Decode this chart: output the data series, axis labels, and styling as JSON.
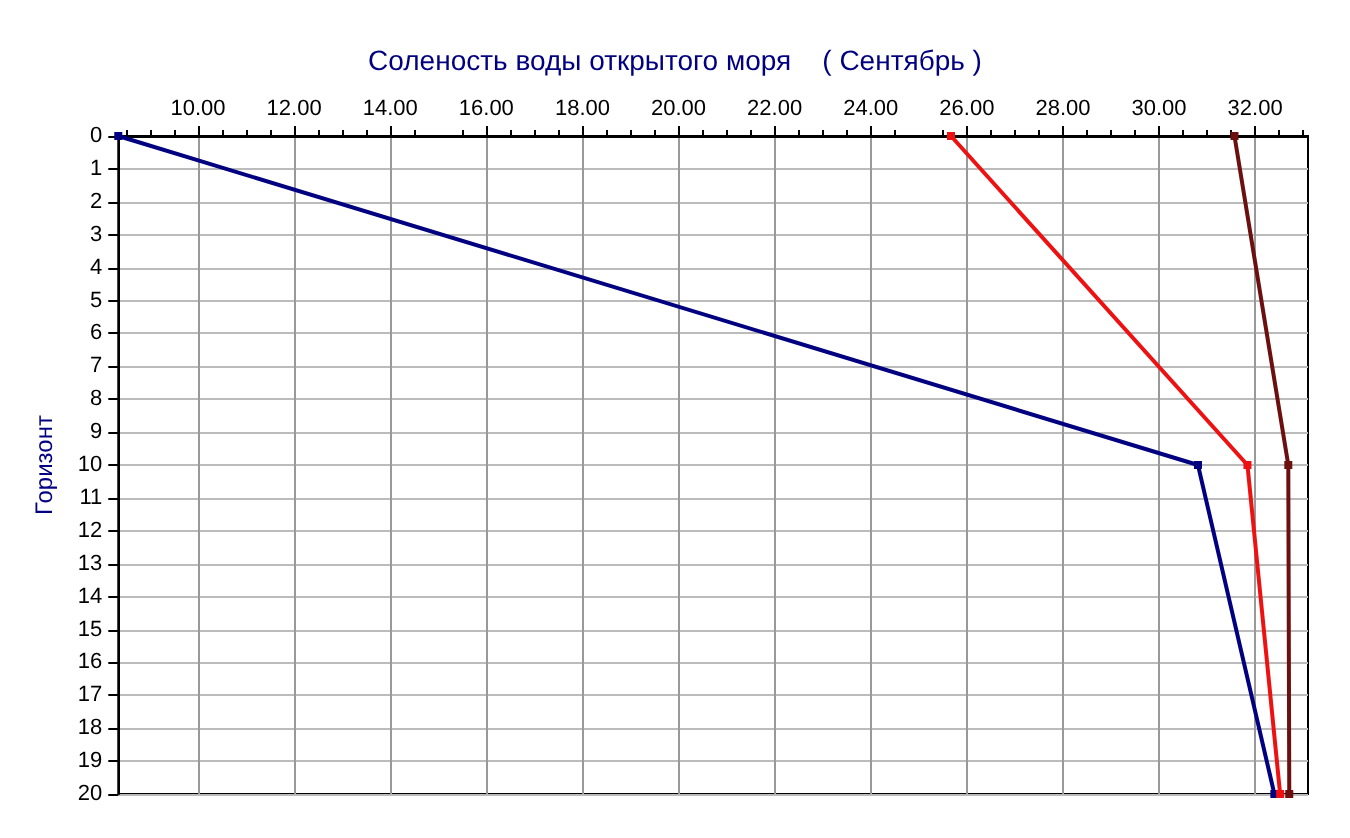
{
  "chart_data": {
    "type": "line",
    "title": "Соленость воды открытого моря    ( Сентябрь )",
    "ylabel": "Горизонт",
    "xlim": [
      8.34,
      33.1
    ],
    "xticks": [
      {
        "value": 10,
        "label": "10.00"
      },
      {
        "value": 12,
        "label": "12.00"
      },
      {
        "value": 14,
        "label": "14.00"
      },
      {
        "value": 16,
        "label": "16.00"
      },
      {
        "value": 18,
        "label": "18.00"
      },
      {
        "value": 20,
        "label": "20.00"
      },
      {
        "value": 22,
        "label": "22.00"
      },
      {
        "value": 24,
        "label": "24.00"
      },
      {
        "value": 26,
        "label": "26.00"
      },
      {
        "value": 28,
        "label": "28.00"
      },
      {
        "value": 30,
        "label": "30.00"
      },
      {
        "value": 32,
        "label": "32.00"
      }
    ],
    "ylim": [
      20,
      0
    ],
    "yticks": [
      0,
      1,
      2,
      3,
      4,
      5,
      6,
      7,
      8,
      9,
      10,
      11,
      12,
      13,
      14,
      15,
      16,
      17,
      18,
      19,
      20
    ],
    "grid": true,
    "marker": "square",
    "line_style": "solid",
    "series": [
      {
        "color": "#000080",
        "x": [
          8.34,
          30.81,
          32.4
        ],
        "values": [
          0,
          10,
          20
        ]
      },
      {
        "color": "#ee1111",
        "x": [
          25.67,
          31.84,
          32.52
        ],
        "values": [
          0,
          10,
          20
        ]
      },
      {
        "color": "#6b0f0f",
        "x": [
          31.57,
          32.69,
          32.71
        ],
        "values": [
          0,
          10,
          20
        ]
      }
    ]
  }
}
